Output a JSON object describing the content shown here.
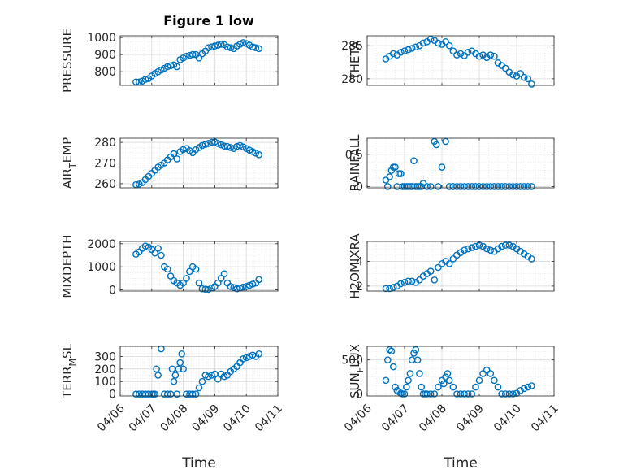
{
  "figure": {
    "title": "Figure 1 low"
  },
  "colors": {
    "marker": "#0072BD",
    "axis": "#262626",
    "grid": "#d9d9d9"
  },
  "chart_data": [
    {
      "type": "scatter",
      "title": "Figure 1 low",
      "ylabel_parts": [
        "PRESSURE"
      ],
      "xlabel": "",
      "xlim": [
        "04/06",
        "04/11"
      ],
      "ylim": [
        720,
        1010
      ],
      "yticks": [
        800,
        900,
        1000
      ],
      "xticks": [
        "04/06",
        "04/07",
        "04/08",
        "04/09",
        "04/10",
        "04/11"
      ],
      "grid": true,
      "x": [
        6.5,
        6.6,
        6.7,
        6.8,
        6.9,
        7.0,
        7.1,
        7.2,
        7.3,
        7.4,
        7.5,
        7.6,
        7.7,
        7.8,
        7.9,
        8.0,
        8.1,
        8.2,
        8.3,
        8.4,
        8.5,
        8.6,
        8.7,
        8.8,
        8.9,
        9.0,
        9.1,
        9.2,
        9.3,
        9.4,
        9.5,
        9.6,
        9.7,
        9.8,
        9.9,
        10.0,
        10.1,
        10.2,
        10.3,
        10.4
      ],
      "y": [
        740,
        740,
        745,
        755,
        760,
        775,
        790,
        800,
        810,
        820,
        830,
        835,
        840,
        830,
        870,
        880,
        890,
        895,
        900,
        900,
        880,
        905,
        920,
        940,
        945,
        950,
        955,
        960,
        958,
        945,
        940,
        935,
        950,
        960,
        970,
        965,
        955,
        945,
        940,
        935
      ]
    },
    {
      "type": "scatter",
      "title": "",
      "ylabel_parts": [
        "THETA"
      ],
      "xlabel": "",
      "xlim": [
        "04/06",
        "04/11"
      ],
      "ylim": [
        279,
        286.5
      ],
      "yticks": [
        280,
        285
      ],
      "xticks": [
        "04/06",
        "04/07",
        "04/08",
        "04/09",
        "04/10",
        "04/11"
      ],
      "grid": true,
      "x": [
        6.5,
        6.6,
        6.7,
        6.8,
        6.9,
        7.0,
        7.1,
        7.2,
        7.3,
        7.4,
        7.5,
        7.6,
        7.7,
        7.8,
        7.9,
        8.0,
        8.1,
        8.2,
        8.3,
        8.4,
        8.5,
        8.6,
        8.7,
        8.8,
        8.9,
        9.0,
        9.1,
        9.2,
        9.3,
        9.4,
        9.5,
        9.6,
        9.7,
        9.8,
        9.9,
        10.0,
        10.1,
        10.2,
        10.3,
        10.4
      ],
      "y": [
        283.0,
        283.4,
        283.8,
        283.6,
        284.0,
        284.2,
        284.4,
        284.6,
        284.8,
        285.0,
        285.4,
        285.6,
        286.0,
        285.8,
        285.4,
        285.2,
        285.6,
        285.0,
        284.2,
        283.6,
        283.8,
        283.5,
        284.0,
        284.2,
        283.8,
        283.4,
        283.6,
        283.2,
        283.6,
        283.4,
        282.4,
        282.0,
        281.6,
        281.0,
        280.6,
        280.4,
        280.8,
        280.2,
        280.0,
        279.2
      ]
    },
    {
      "type": "scatter",
      "title": "",
      "ylabel_parts": [
        "AIR",
        "T",
        "EMP"
      ],
      "xlabel": "",
      "xlim": [
        "04/06",
        "04/11"
      ],
      "ylim": [
        258,
        282
      ],
      "yticks": [
        260,
        270,
        280
      ],
      "xticks": [
        "04/06",
        "04/07",
        "04/08",
        "04/09",
        "04/10",
        "04/11"
      ],
      "grid": true,
      "x": [
        6.5,
        6.6,
        6.7,
        6.8,
        6.9,
        7.0,
        7.1,
        7.2,
        7.3,
        7.4,
        7.5,
        7.6,
        7.7,
        7.8,
        7.9,
        8.0,
        8.1,
        8.2,
        8.3,
        8.4,
        8.5,
        8.6,
        8.7,
        8.8,
        8.9,
        9.0,
        9.1,
        9.2,
        9.3,
        9.4,
        9.5,
        9.6,
        9.7,
        9.8,
        9.9,
        10.0,
        10.1,
        10.2,
        10.3,
        10.4
      ],
      "y": [
        259.5,
        259.8,
        260.5,
        262.0,
        263.5,
        265.0,
        266.5,
        268.0,
        269.0,
        270.0,
        271.5,
        273.0,
        274.5,
        272.0,
        275.5,
        276.5,
        277.0,
        276.0,
        275.0,
        276.5,
        277.5,
        278.5,
        279.0,
        279.5,
        280.0,
        280.2,
        279.5,
        278.8,
        278.2,
        278.0,
        277.5,
        277.0,
        278.0,
        278.5,
        277.8,
        277.0,
        276.2,
        275.5,
        274.8,
        274.0
      ]
    },
    {
      "type": "scatter",
      "title": "",
      "ylabel_parts": [
        "RAINFALL"
      ],
      "xlabel": "",
      "xlim": [
        "04/06",
        "04/11"
      ],
      "ylim": [
        -0.02,
        0.75
      ],
      "yticks": [
        0,
        0.5
      ],
      "xticks": [
        "04/06",
        "04/07",
        "04/08",
        "04/09",
        "04/10",
        "04/11"
      ],
      "grid": true,
      "x": [
        6.5,
        6.55,
        6.6,
        6.65,
        6.7,
        6.75,
        6.8,
        6.85,
        6.9,
        6.95,
        7.0,
        7.05,
        7.1,
        7.15,
        7.2,
        7.25,
        7.3,
        7.35,
        7.4,
        7.45,
        7.5,
        7.6,
        7.7,
        7.8,
        7.85,
        7.9,
        8.0,
        8.1,
        8.2,
        8.3,
        8.4,
        8.5,
        8.6,
        8.7,
        8.8,
        8.9,
        9.0,
        9.1,
        9.2,
        9.3,
        9.4,
        9.5,
        9.6,
        9.7,
        9.8,
        9.9,
        10.0,
        10.1,
        10.2,
        10.3,
        10.4
      ],
      "y": [
        0.1,
        0.0,
        0.15,
        0.25,
        0.3,
        0.3,
        0.0,
        0.2,
        0.2,
        0.0,
        0.0,
        0.0,
        0.0,
        0.0,
        0.0,
        0.4,
        0.0,
        0.0,
        0.0,
        0.0,
        0.05,
        0.0,
        0.0,
        0.7,
        0.65,
        0.0,
        0.3,
        0.7,
        0.0,
        0.0,
        0.0,
        0.0,
        0.0,
        0.0,
        0.0,
        0.0,
        0.0,
        0.0,
        0.0,
        0.0,
        0.0,
        0.0,
        0.0,
        0.0,
        0.0,
        0.0,
        0.0,
        0.0,
        0.0,
        0.0,
        0.0
      ]
    },
    {
      "type": "scatter",
      "title": "",
      "ylabel_parts": [
        "MIXDEPTH"
      ],
      "xlabel": "",
      "xlim": [
        "04/06",
        "04/11"
      ],
      "ylim": [
        -50,
        2100
      ],
      "yticks": [
        0,
        1000,
        2000
      ],
      "xticks": [
        "04/06",
        "04/07",
        "04/08",
        "04/09",
        "04/10",
        "04/11"
      ],
      "grid": true,
      "x": [
        6.5,
        6.6,
        6.7,
        6.8,
        6.9,
        7.0,
        7.1,
        7.2,
        7.3,
        7.4,
        7.5,
        7.6,
        7.7,
        7.8,
        7.9,
        8.0,
        8.1,
        8.2,
        8.3,
        8.4,
        8.5,
        8.6,
        8.7,
        8.8,
        8.9,
        9.0,
        9.1,
        9.2,
        9.3,
        9.4,
        9.5,
        9.6,
        9.7,
        9.8,
        9.9,
        10.0,
        10.1,
        10.2,
        10.3,
        10.4
      ],
      "y": [
        1550,
        1650,
        1800,
        1900,
        1850,
        1750,
        1600,
        1800,
        1500,
        1000,
        900,
        600,
        400,
        300,
        200,
        300,
        500,
        800,
        1000,
        900,
        300,
        50,
        30,
        20,
        80,
        150,
        300,
        500,
        700,
        300,
        150,
        100,
        50,
        80,
        120,
        150,
        200,
        250,
        300,
        450
      ]
    },
    {
      "type": "scatter",
      "title": "",
      "ylabel_parts": [
        "H2OMIXRA"
      ],
      "xlabel": "",
      "xlim": [
        "04/06",
        "04/11"
      ],
      "ylim": [
        1.6,
        5.6
      ],
      "yticks": [
        2,
        4
      ],
      "xticks": [
        "04/06",
        "04/07",
        "04/08",
        "04/09",
        "04/10",
        "04/11"
      ],
      "grid": true,
      "x": [
        6.5,
        6.6,
        6.7,
        6.8,
        6.9,
        7.0,
        7.1,
        7.2,
        7.3,
        7.4,
        7.5,
        7.6,
        7.7,
        7.8,
        7.9,
        8.0,
        8.1,
        8.2,
        8.3,
        8.4,
        8.5,
        8.6,
        8.7,
        8.8,
        8.9,
        9.0,
        9.1,
        9.2,
        9.3,
        9.4,
        9.5,
        9.6,
        9.7,
        9.8,
        9.9,
        10.0,
        10.1,
        10.2,
        10.3,
        10.4
      ],
      "y": [
        1.8,
        1.8,
        1.9,
        2.0,
        2.2,
        2.3,
        2.4,
        2.4,
        2.3,
        2.5,
        2.8,
        3.0,
        3.2,
        2.5,
        3.5,
        3.8,
        4.0,
        3.8,
        4.2,
        4.5,
        4.7,
        4.9,
        5.0,
        5.1,
        5.2,
        5.3,
        5.2,
        5.0,
        4.9,
        4.8,
        5.0,
        5.2,
        5.3,
        5.3,
        5.2,
        5.0,
        4.8,
        4.6,
        4.4,
        4.2
      ]
    },
    {
      "type": "scatter",
      "title": "",
      "ylabel_parts": [
        "TERR",
        "M",
        "SL"
      ],
      "xlabel": "Time",
      "xlim": [
        "04/06",
        "04/11"
      ],
      "ylim": [
        -15,
        380
      ],
      "yticks": [
        0,
        100,
        200,
        300
      ],
      "ytick_labels": [
        "0",
        "100",
        "200",
        "300"
      ],
      "xticks": [
        "04/06",
        "04/07",
        "04/08",
        "04/09",
        "04/10",
        "04/11"
      ],
      "grid": true,
      "x": [
        6.5,
        6.6,
        6.7,
        6.8,
        6.9,
        7.0,
        7.05,
        7.1,
        7.15,
        7.2,
        7.3,
        7.4,
        7.5,
        7.6,
        7.65,
        7.7,
        7.75,
        7.8,
        7.85,
        7.9,
        7.95,
        8.0,
        8.1,
        8.2,
        8.3,
        8.4,
        8.5,
        8.6,
        8.7,
        8.8,
        8.9,
        9.0,
        9.1,
        9.2,
        9.3,
        9.4,
        9.5,
        9.6,
        9.7,
        9.8,
        9.9,
        10.0,
        10.1,
        10.2,
        10.3,
        10.4
      ],
      "y": [
        0,
        0,
        0,
        0,
        0,
        0,
        0,
        0,
        200,
        150,
        360,
        0,
        0,
        0,
        200,
        100,
        150,
        0,
        200,
        250,
        320,
        200,
        0,
        0,
        0,
        0,
        50,
        100,
        150,
        140,
        150,
        160,
        120,
        160,
        140,
        150,
        180,
        200,
        220,
        250,
        280,
        290,
        300,
        310,
        300,
        320
      ]
    },
    {
      "type": "scatter",
      "title": "",
      "ylabel_parts": [
        "SUN",
        "F",
        "LUX"
      ],
      "xlabel": "Time",
      "xlim": [
        "04/06",
        "04/11"
      ],
      "ylim": [
        -30,
        700
      ],
      "yticks": [
        0,
        500
      ],
      "xticks": [
        "04/06",
        "04/07",
        "04/08",
        "04/09",
        "04/10",
        "04/11"
      ],
      "grid": true,
      "x": [
        6.5,
        6.55,
        6.6,
        6.65,
        6.7,
        6.75,
        6.8,
        6.85,
        6.9,
        6.95,
        7.0,
        7.05,
        7.1,
        7.15,
        7.2,
        7.25,
        7.3,
        7.35,
        7.4,
        7.45,
        7.5,
        7.55,
        7.6,
        7.7,
        7.8,
        7.9,
        8.0,
        8.05,
        8.1,
        8.15,
        8.2,
        8.3,
        8.4,
        8.5,
        8.6,
        8.7,
        8.8,
        8.9,
        9.0,
        9.1,
        9.2,
        9.3,
        9.4,
        9.5,
        9.6,
        9.7,
        9.8,
        9.9,
        10.0,
        10.1,
        10.2,
        10.3,
        10.4
      ],
      "y": [
        200,
        500,
        650,
        630,
        400,
        100,
        50,
        30,
        10,
        0,
        0,
        100,
        200,
        300,
        500,
        600,
        650,
        500,
        300,
        100,
        0,
        0,
        0,
        0,
        0,
        100,
        200,
        150,
        250,
        300,
        200,
        100,
        0,
        0,
        0,
        0,
        0,
        100,
        200,
        300,
        350,
        300,
        200,
        100,
        0,
        0,
        0,
        0,
        10,
        50,
        80,
        100,
        120
      ]
    }
  ]
}
